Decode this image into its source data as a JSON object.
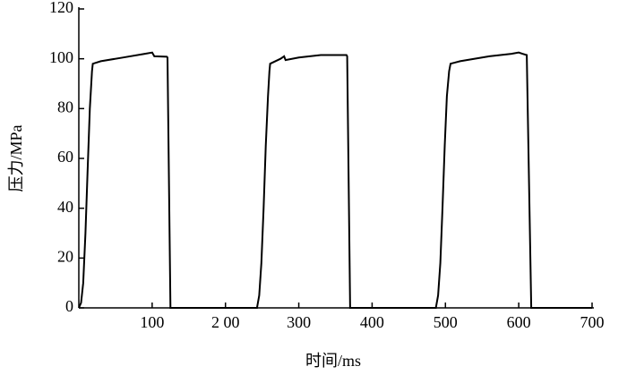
{
  "chart_data": {
    "type": "line",
    "xlabel": "时间/ms",
    "ylabel": "压力/MPa",
    "x": [
      0,
      3,
      6,
      9,
      12,
      15,
      18,
      19,
      30,
      60,
      90,
      100,
      103,
      120,
      121,
      125,
      243,
      246,
      249,
      252,
      255,
      258,
      260,
      261,
      275,
      280,
      282,
      300,
      330,
      365,
      366,
      370,
      487,
      490,
      493,
      496,
      499,
      502,
      505,
      507,
      520,
      560,
      590,
      600,
      605,
      611,
      617,
      700
    ],
    "values": [
      0,
      2,
      10,
      30,
      55,
      80,
      95,
      98,
      99,
      100.5,
      102,
      102.5,
      101,
      100.8,
      100.5,
      0,
      0,
      5,
      18,
      40,
      65,
      85,
      95,
      98,
      100,
      101,
      99.5,
      100.5,
      101.5,
      101.5,
      101,
      0,
      0,
      5,
      18,
      40,
      65,
      85,
      95,
      98,
      99,
      101,
      102,
      102.5,
      102,
      101.5,
      0,
      0
    ],
    "color": "#000000",
    "xlim": [
      0,
      700
    ],
    "xticks": [
      100,
      {
        "value": 200,
        "label": "2 00"
      },
      300,
      400,
      500,
      600,
      700
    ],
    "ylim": [
      0,
      120
    ],
    "yticks": [
      0,
      20,
      40,
      60,
      80,
      100,
      120
    ]
  }
}
